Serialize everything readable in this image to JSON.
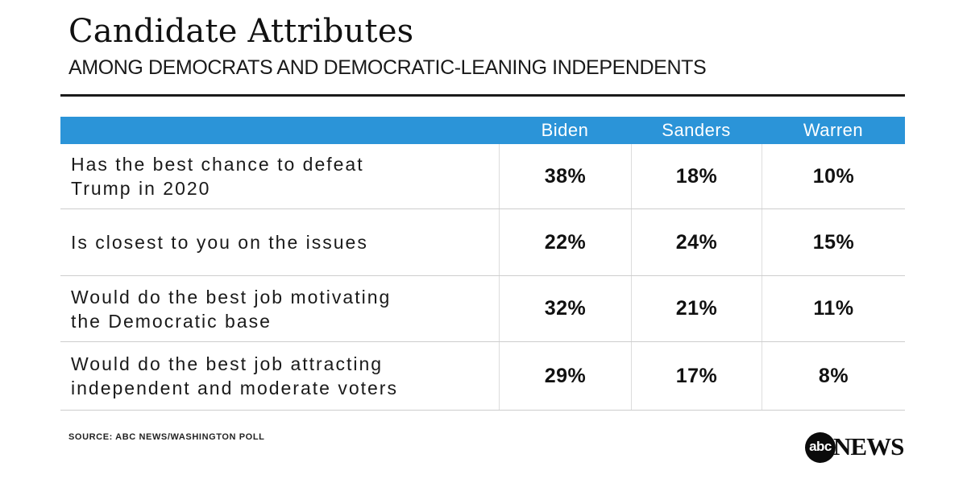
{
  "header": {
    "title": "Candidate Attributes",
    "subtitle": "AMONG DEMOCRATS AND DEMOCRATIC-LEANING INDEPENDENTS"
  },
  "table": {
    "columns": [
      "Biden",
      "Sanders",
      "Warren"
    ],
    "rows": [
      {
        "label": "Has the best chance to defeat\nTrump in 2020",
        "values": [
          "38%",
          "18%",
          "10%"
        ]
      },
      {
        "label": "Is closest to you on the issues",
        "values": [
          "22%",
          "24%",
          "15%"
        ]
      },
      {
        "label": "Would do the best job motivating\nthe Democratic base",
        "values": [
          "32%",
          "21%",
          "11%"
        ]
      },
      {
        "label": "Would do the best job attracting\nindependent and moderate voters",
        "values": [
          "29%",
          "17%",
          "8%"
        ]
      }
    ]
  },
  "footer": {
    "source": "SOURCE: ABC NEWS/WASHINGTON POLL",
    "logo_abc": "abc",
    "logo_news": "NEWS"
  },
  "colors": {
    "header_bg": "#2B94D8",
    "header_text": "#FFFFFF",
    "rule": "#1A1A1A",
    "grid_line": "#CDCDCD",
    "grid_line_v": "#DDDDDD",
    "text": "#1A1A1A",
    "logo_black": "#0B0B0B"
  },
  "chart_data": {
    "type": "table",
    "title": "Candidate Attributes",
    "subtitle": "AMONG DEMOCRATS AND DEMOCRATIC-LEANING INDEPENDENTS",
    "columns": [
      "Biden",
      "Sanders",
      "Warren"
    ],
    "categories": [
      "Has the best chance to defeat Trump in 2020",
      "Is closest to you on the issues",
      "Would do the best job motivating the Democratic base",
      "Would do the best job attracting independent and moderate voters"
    ],
    "series": [
      {
        "name": "Biden",
        "values": [
          38,
          22,
          32,
          29
        ]
      },
      {
        "name": "Sanders",
        "values": [
          18,
          24,
          21,
          17
        ]
      },
      {
        "name": "Warren",
        "values": [
          10,
          15,
          11,
          8
        ]
      }
    ],
    "units": "percent",
    "source": "SOURCE: ABC NEWS/WASHINGTON POLL",
    "legend_position": "header-row",
    "grid": true
  }
}
